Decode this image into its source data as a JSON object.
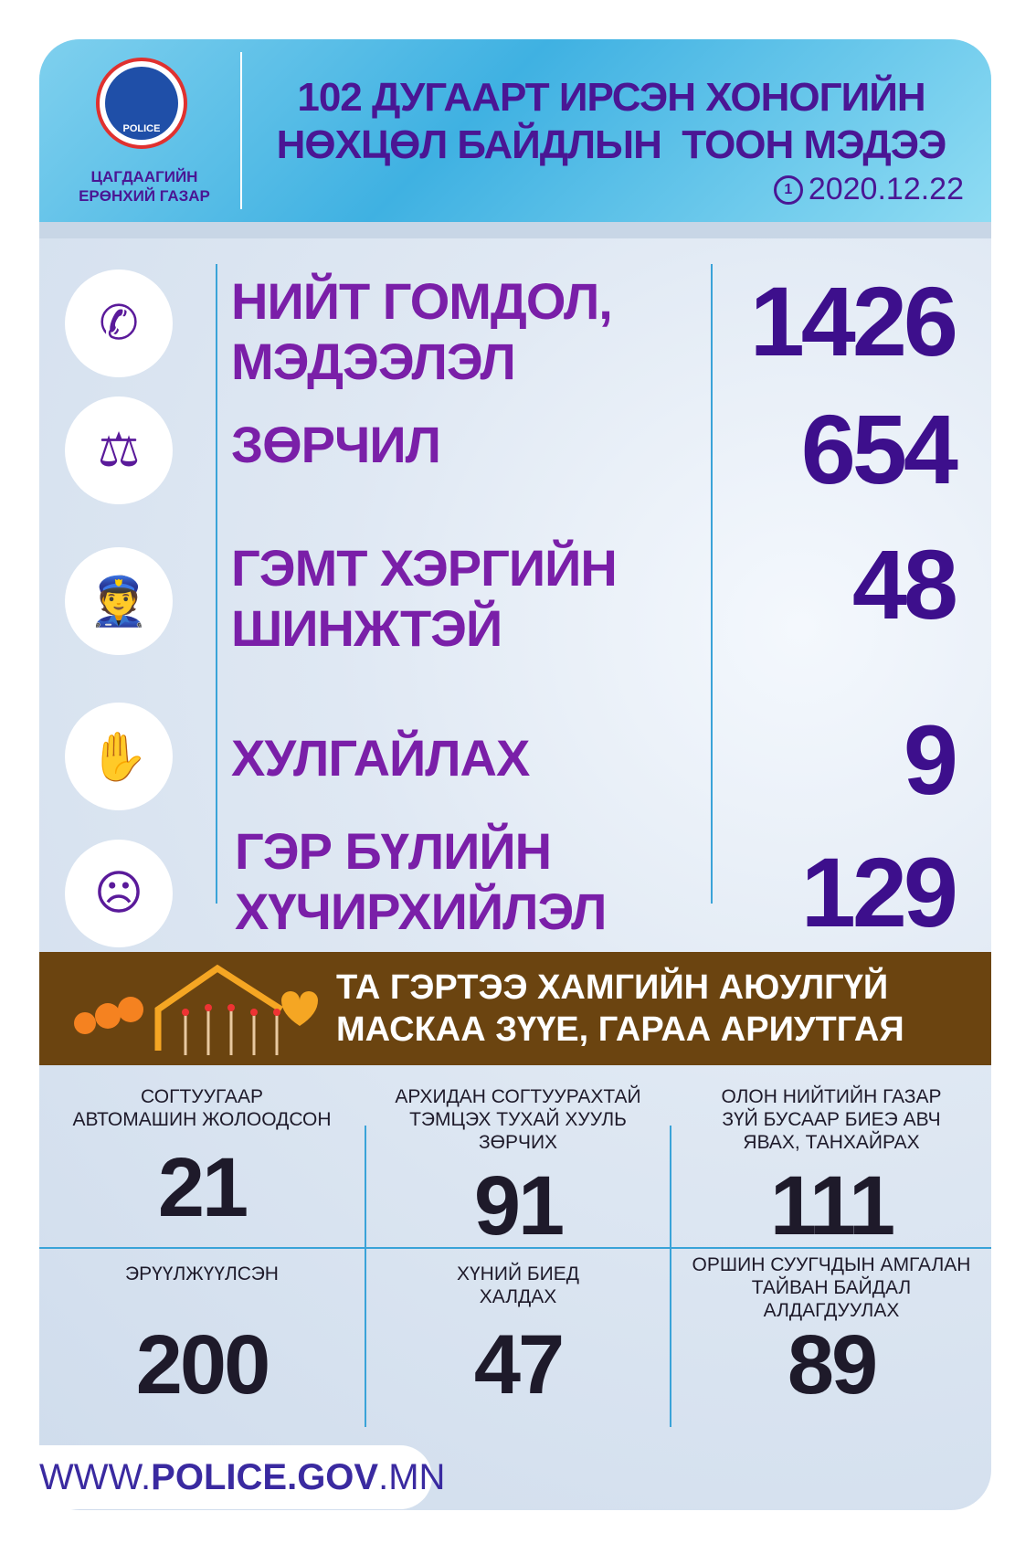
{
  "header": {
    "org_line1": "ЦАГДААГИЙН",
    "org_line2": "ЕРӨНХИЙ ГАЗАР",
    "logo_text": "POLICE",
    "title_line1": "102 ДУГААРТ ИРСЭН ХОНОГИЙН",
    "title_line2": "НӨХЦӨЛ БАЙДЛЫН  ТООН МЭДЭЭ",
    "date": "2020.12.22",
    "date_icon": "1-day-clock-icon"
  },
  "stats": [
    {
      "icon": "phone-24h-icon",
      "line1": "НИЙТ ГОМДОЛ,",
      "line2": "МЭДЭЭЛЭЛ",
      "value": "1426"
    },
    {
      "icon": "gavel-book-icon",
      "line1": "ЗӨРЧИЛ",
      "line2": "",
      "value": "654"
    },
    {
      "icon": "police-arrest-icon",
      "line1": "ГЭМТ ХЭРГИЙН",
      "line2": "ШИНЖТЭЙ",
      "value": "48"
    },
    {
      "icon": "theft-hand-icon",
      "line1": "ХУЛГАЙЛАХ",
      "line2": "",
      "value": "9"
    },
    {
      "icon": "domestic-violence-icon",
      "line1": "ГЭР БҮЛИЙН",
      "line2": "ХҮЧИРХИЙЛЭЛ",
      "value": "129"
    }
  ],
  "banner": {
    "line1": "ТА ГЭРТЭЭ ХАМГИЙН АЮУЛГҮЙ",
    "line2": "МАСКАА ЗҮҮЕ, ГАРАА АРИУТГАЯ"
  },
  "grid": [
    {
      "label": [
        "СОГТУУГААР",
        "АВТОМАШИН ЖОЛООДСОН"
      ],
      "value": "21"
    },
    {
      "label": [
        "АРХИДАН СОГТУУРАХТАЙ",
        "ТЭМЦЭХ ТУХАЙ ХУУЛЬ",
        "ЗӨРЧИХ"
      ],
      "value": "91"
    },
    {
      "label": [
        "ОЛОН НИЙТИЙН ГАЗАР",
        "ЗҮЙ БУСААР БИЕЭ АВЧ",
        "ЯВАХ, ТАНХАЙРАХ"
      ],
      "value": "111"
    },
    {
      "label": [
        "ЭРҮҮЛЖҮҮЛСЭН"
      ],
      "value": "200"
    },
    {
      "label": [
        "ХҮНИЙ БИЕД",
        "ХАЛДАХ"
      ],
      "value": "47"
    },
    {
      "label": [
        "ОРШИН СУУГЧДЫН АМГАЛАН",
        "ТАЙВАН БАЙДАЛ",
        "АЛДАГДУУЛАХ"
      ],
      "value": "89"
    }
  ],
  "footer": {
    "url_prefix": "WWW.",
    "url_main": "POLICE.GOV",
    "url_suffix": ".MN"
  },
  "colors": {
    "label_purple": "#7a1fa8",
    "number_purple": "#3d0f8c",
    "banner_brown": "#6b4410",
    "header_blue": "#3fb1e2",
    "divider_blue": "#3aa3d8"
  }
}
